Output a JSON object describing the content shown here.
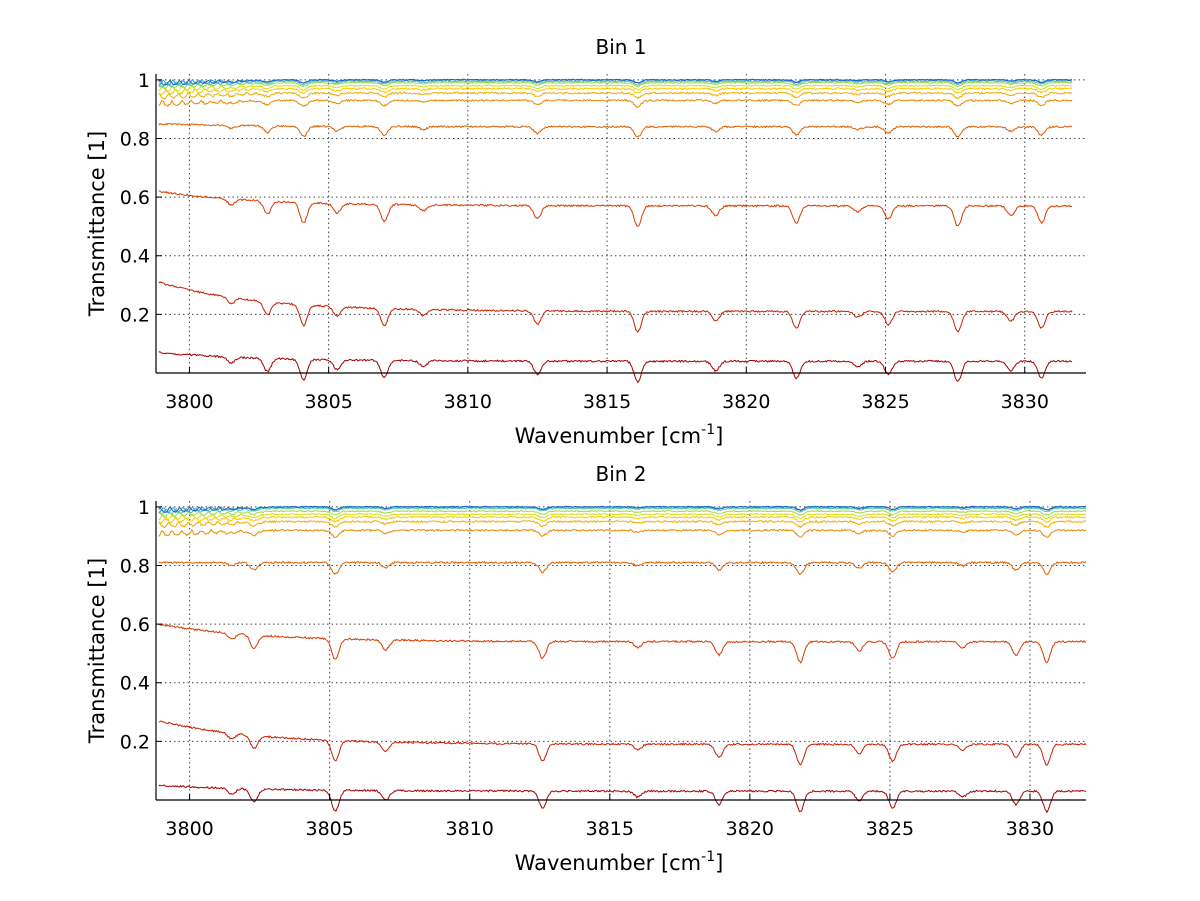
{
  "figure": {
    "background": "#ffffff"
  },
  "chart_data": [
    {
      "type": "line",
      "title": "Bin 1",
      "xlabel": "Wavenumber [cm",
      "xlabel_sup": "-1",
      "xlabel_end": "]",
      "ylabel": "Transmittance [1]",
      "xlim": [
        3798.8,
        3832.2
      ],
      "ylim": [
        0.0,
        1.02
      ],
      "xticks": [
        3800,
        3805,
        3810,
        3815,
        3820,
        3825,
        3830
      ],
      "yticks": [
        0.2,
        0.4,
        0.6,
        0.8,
        1
      ],
      "ytick_labels": [
        "0.2",
        "0.4",
        "0.6",
        "0.8",
        "1"
      ],
      "grid": true,
      "x_end": 3831.7,
      "line_colors": [
        "#800000",
        "#a50000",
        "#c81e00",
        "#d83a00",
        "#e06000",
        "#e88a00",
        "#f0ad00",
        "#f5cc00",
        "#d8de10",
        "#9ddc45",
        "#55c8a0",
        "#2aa8d8",
        "#1f5bc8"
      ],
      "baselines": [
        0.0,
        0.04,
        0.21,
        0.57,
        0.84,
        0.93,
        0.955,
        0.97,
        0.98,
        0.99,
        0.995,
        1.0,
        1.0
      ],
      "start_offsets": [
        0.0,
        0.03,
        0.1,
        0.05,
        0.01,
        0.0,
        0.0,
        0.0,
        0.0,
        0.0,
        0.0,
        0.0,
        0.0
      ],
      "absorption_lines": [
        3801.5,
        3802.8,
        3804.1,
        3805.3,
        3807.0,
        3808.4,
        3812.5,
        3816.1,
        3818.9,
        3821.8,
        3824.0,
        3825.1,
        3827.6,
        3829.5,
        3830.6
      ]
    },
    {
      "type": "line",
      "title": "Bin 2",
      "xlabel": "Wavenumber [cm",
      "xlabel_sup": "-1",
      "xlabel_end": "]",
      "ylabel": "Transmittance [1]",
      "xlim": [
        3798.8,
        3832.0
      ],
      "ylim": [
        0.0,
        1.02
      ],
      "xticks": [
        3800,
        3805,
        3810,
        3815,
        3820,
        3825,
        3830
      ],
      "yticks": [
        0.2,
        0.4,
        0.6,
        0.8,
        1
      ],
      "ytick_labels": [
        "0.2",
        "0.4",
        "0.6",
        "0.8",
        "1"
      ],
      "grid": true,
      "x_end": 3832.0,
      "line_colors": [
        "#800000",
        "#a50000",
        "#c81e00",
        "#d83a00",
        "#e06000",
        "#e88a00",
        "#f0ad00",
        "#f5cc00",
        "#d8de10",
        "#9ddc45",
        "#55c8a0",
        "#2aa8d8",
        "#1f5bc8"
      ],
      "baselines": [
        0.0,
        0.03,
        0.19,
        0.54,
        0.81,
        0.92,
        0.95,
        0.965,
        0.975,
        0.985,
        0.995,
        1.0,
        1.0
      ],
      "start_offsets": [
        0.0,
        0.02,
        0.08,
        0.06,
        0.0,
        0.0,
        0.0,
        0.0,
        0.0,
        0.0,
        0.0,
        0.0,
        0.0
      ],
      "absorption_lines": [
        3801.5,
        3802.3,
        3805.2,
        3807.0,
        3812.6,
        3816.0,
        3818.9,
        3821.8,
        3823.9,
        3825.1,
        3827.6,
        3829.5,
        3830.6
      ]
    }
  ]
}
